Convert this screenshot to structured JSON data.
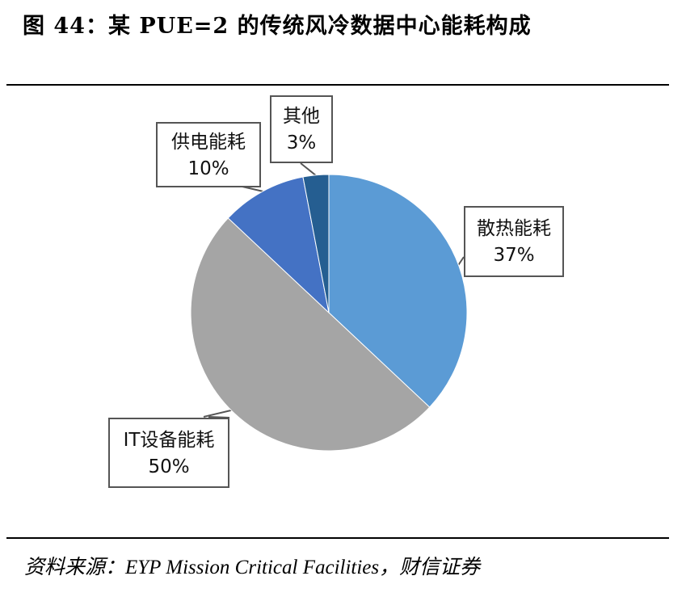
{
  "title": "图 44：某 PUE=2 的传统风冷数据中心能耗构成",
  "source": "资料来源：EYP Mission Critical Facilities，财信证券",
  "chart_data": {
    "type": "pie",
    "title": "图 44：某 PUE=2 的传统风冷数据中心能耗构成",
    "slices": [
      {
        "label": "散热能耗",
        "value": 37,
        "value_label": "37%",
        "color": "#5b9bd5"
      },
      {
        "label": "IT设备能耗",
        "value": 50,
        "value_label": "50%",
        "color": "#a5a5a5"
      },
      {
        "label": "供电能耗",
        "value": 10,
        "value_label": "10%",
        "color": "#4472c4"
      },
      {
        "label": "其他",
        "value": 3,
        "value_label": "3%",
        "color": "#255e91"
      }
    ],
    "start_angle_deg": 0,
    "direction": "clockwise"
  }
}
